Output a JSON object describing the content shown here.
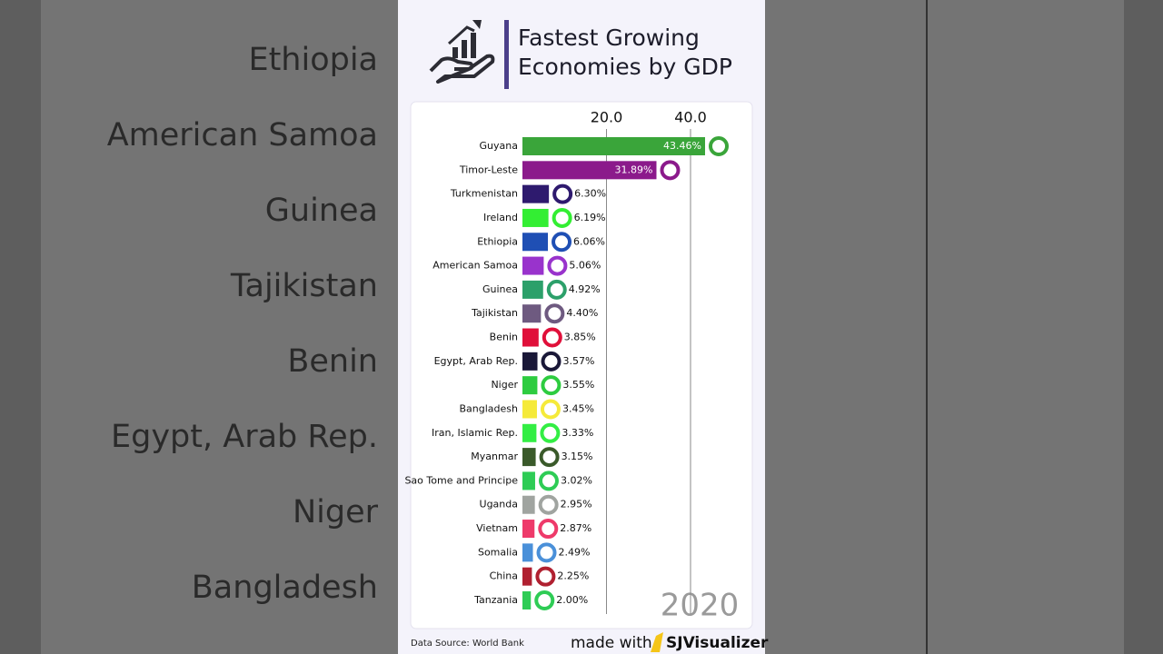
{
  "background": {
    "labels": [
      "Ethiopia",
      "American Samoa",
      "Guinea",
      "Tajikistan",
      "Benin",
      "Egypt, Arab Rep.",
      "Niger",
      "Bangladesh"
    ]
  },
  "chart_data": {
    "type": "bar",
    "orientation": "horizontal",
    "title": "Fastest Growing Economies by GDP",
    "date_label": "2020",
    "source": "Data Source: World Bank",
    "branding": {
      "prefix": "made with",
      "name": "SJVisualizer"
    },
    "categories": [
      "Guyana",
      "Timor-Leste",
      "Turkmenistan",
      "Ireland",
      "Ethiopia",
      "American Samoa",
      "Guinea",
      "Tajikistan",
      "Benin",
      "Egypt, Arab Rep.",
      "Niger",
      "Bangladesh",
      "Iran, Islamic Rep.",
      "Myanmar",
      "Sao Tome and Principe",
      "Uganda",
      "Vietnam",
      "Somalia",
      "China",
      "Tanzania"
    ],
    "values": [
      43.46,
      31.89,
      6.3,
      6.19,
      6.06,
      5.06,
      4.92,
      4.4,
      3.85,
      3.57,
      3.55,
      3.45,
      3.33,
      3.15,
      3.02,
      2.95,
      2.87,
      2.49,
      2.25,
      2.0
    ],
    "value_labels": [
      "43.46%",
      "31.89%",
      "6.30%",
      "6.19%",
      "6.06%",
      "5.06%",
      "4.92%",
      "4.40%",
      "3.85%",
      "3.57%",
      "3.55%",
      "3.45%",
      "3.33%",
      "3.15%",
      "3.02%",
      "2.95%",
      "2.87%",
      "2.49%",
      "2.25%",
      "2.00%"
    ],
    "colors": [
      "#3aa53a",
      "#8b1a8b",
      "#2e1a6e",
      "#33ee33",
      "#1f4fb4",
      "#9933cc",
      "#2ca06a",
      "#6e5a80",
      "#e0103a",
      "#1a1838",
      "#2ecc40",
      "#f5ea3a",
      "#33ee44",
      "#3a5a2a",
      "#2ecc55",
      "#a0a4a0",
      "#ee3a6a",
      "#4a90d9",
      "#b02030",
      "#2ecc55"
    ],
    "xlim": [
      0,
      50
    ],
    "xticks": [
      {
        "value": 20,
        "label": "20.0"
      },
      {
        "value": 40,
        "label": "40.0"
      }
    ],
    "grid": true
  }
}
